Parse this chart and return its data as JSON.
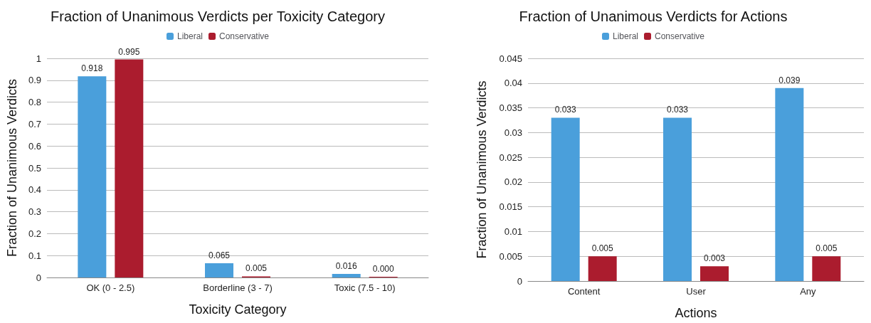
{
  "chart_data": [
    {
      "type": "bar",
      "title": "Fraction of Unanimous Verdicts per Toxicity Category",
      "xlabel": "Toxicity Category",
      "ylabel": "Fraction of Unanimous Verdicts",
      "categories": [
        "OK (0 - 2.5)",
        "Borderline (3 - 7)",
        "Toxic (7.5 - 10)"
      ],
      "series": [
        {
          "name": "Liberal",
          "color": "#4a9fdb",
          "values": [
            0.918,
            0.065,
            0.016
          ],
          "value_labels": [
            "0.918",
            "0.065",
            "0.016"
          ]
        },
        {
          "name": "Conservative",
          "color": "#ab1c2e",
          "values": [
            0.995,
            0.005,
            0.0
          ],
          "value_labels": [
            "0.995",
            "0.005",
            "0.000"
          ]
        }
      ],
      "ylim": [
        0,
        1
      ],
      "yticks": [
        0,
        0.1,
        0.2,
        0.3,
        0.4,
        0.5,
        0.6,
        0.7,
        0.8,
        0.9,
        1
      ],
      "grid": "y",
      "legend": "top"
    },
    {
      "type": "bar",
      "title": "Fraction of Unanimous Verdicts for Actions",
      "xlabel": "Actions",
      "ylabel": "Fraction of Unanimous Verdicts",
      "categories": [
        "Content",
        "User",
        "Any"
      ],
      "series": [
        {
          "name": "Liberal",
          "color": "#4a9fdb",
          "values": [
            0.033,
            0.033,
            0.039
          ],
          "value_labels": [
            "0.033",
            "0.033",
            "0.039"
          ]
        },
        {
          "name": "Conservative",
          "color": "#ab1c2e",
          "values": [
            0.005,
            0.003,
            0.005
          ],
          "value_labels": [
            "0.005",
            "0.003",
            "0.005"
          ]
        }
      ],
      "ylim": [
        0,
        0.045
      ],
      "yticks": [
        0,
        0.005,
        0.01,
        0.015,
        0.02,
        0.025,
        0.03,
        0.035,
        0.04,
        0.045
      ],
      "grid": "y",
      "legend": "top"
    }
  ]
}
